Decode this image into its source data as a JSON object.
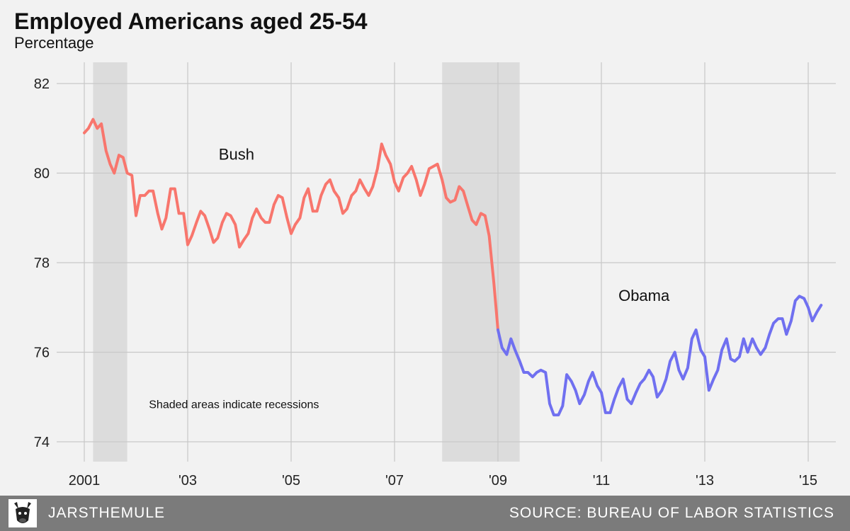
{
  "chart_data": {
    "type": "line",
    "title": "Employed Americans aged 25-54",
    "subtitle": "Percentage",
    "xlim": [
      2001,
      2015.3
    ],
    "ylim": [
      73.6,
      82.5
    ],
    "yticks": [
      74,
      76,
      78,
      80,
      82
    ],
    "xticks": [
      {
        "value": 2001,
        "label": "2001"
      },
      {
        "value": 2003,
        "label": "'03"
      },
      {
        "value": 2005,
        "label": "'05"
      },
      {
        "value": 2007,
        "label": "'07"
      },
      {
        "value": 2009,
        "label": "'09"
      },
      {
        "value": 2011,
        "label": "'11"
      },
      {
        "value": 2013,
        "label": "'13"
      },
      {
        "value": 2015,
        "label": "'15"
      }
    ],
    "grid": true,
    "recessions": [
      {
        "start": 2001.17,
        "end": 2001.83
      },
      {
        "start": 2007.92,
        "end": 2009.42
      }
    ],
    "series": [
      {
        "name": "Bush",
        "color": "#f8766d",
        "label_position": {
          "x": 2003.6,
          "y": 80.3
        },
        "points": [
          [
            2001.0,
            80.9
          ],
          [
            2001.08,
            81.0
          ],
          [
            2001.17,
            81.2
          ],
          [
            2001.25,
            81.0
          ],
          [
            2001.33,
            81.1
          ],
          [
            2001.42,
            80.5
          ],
          [
            2001.5,
            80.2
          ],
          [
            2001.58,
            80.0
          ],
          [
            2001.67,
            80.4
          ],
          [
            2001.75,
            80.35
          ],
          [
            2001.83,
            80.0
          ],
          [
            2001.92,
            79.95
          ],
          [
            2002.0,
            79.05
          ],
          [
            2002.08,
            79.5
          ],
          [
            2002.17,
            79.5
          ],
          [
            2002.25,
            79.6
          ],
          [
            2002.33,
            79.6
          ],
          [
            2002.42,
            79.1
          ],
          [
            2002.5,
            78.75
          ],
          [
            2002.58,
            79.0
          ],
          [
            2002.67,
            79.65
          ],
          [
            2002.75,
            79.65
          ],
          [
            2002.83,
            79.1
          ],
          [
            2002.92,
            79.1
          ],
          [
            2003.0,
            78.4
          ],
          [
            2003.08,
            78.6
          ],
          [
            2003.17,
            78.9
          ],
          [
            2003.25,
            79.15
          ],
          [
            2003.33,
            79.05
          ],
          [
            2003.42,
            78.75
          ],
          [
            2003.5,
            78.45
          ],
          [
            2003.58,
            78.55
          ],
          [
            2003.67,
            78.9
          ],
          [
            2003.75,
            79.1
          ],
          [
            2003.83,
            79.05
          ],
          [
            2003.92,
            78.85
          ],
          [
            2004.0,
            78.35
          ],
          [
            2004.08,
            78.5
          ],
          [
            2004.17,
            78.65
          ],
          [
            2004.25,
            79.0
          ],
          [
            2004.33,
            79.2
          ],
          [
            2004.42,
            79.0
          ],
          [
            2004.5,
            78.9
          ],
          [
            2004.58,
            78.9
          ],
          [
            2004.67,
            79.3
          ],
          [
            2004.75,
            79.5
          ],
          [
            2004.83,
            79.45
          ],
          [
            2004.92,
            79.0
          ],
          [
            2005.0,
            78.65
          ],
          [
            2005.08,
            78.85
          ],
          [
            2005.17,
            79.0
          ],
          [
            2005.25,
            79.45
          ],
          [
            2005.33,
            79.65
          ],
          [
            2005.42,
            79.15
          ],
          [
            2005.5,
            79.15
          ],
          [
            2005.58,
            79.5
          ],
          [
            2005.67,
            79.75
          ],
          [
            2005.75,
            79.85
          ],
          [
            2005.83,
            79.6
          ],
          [
            2005.92,
            79.45
          ],
          [
            2006.0,
            79.1
          ],
          [
            2006.08,
            79.2
          ],
          [
            2006.17,
            79.5
          ],
          [
            2006.25,
            79.6
          ],
          [
            2006.33,
            79.85
          ],
          [
            2006.42,
            79.65
          ],
          [
            2006.5,
            79.5
          ],
          [
            2006.58,
            79.7
          ],
          [
            2006.67,
            80.1
          ],
          [
            2006.75,
            80.65
          ],
          [
            2006.83,
            80.4
          ],
          [
            2006.92,
            80.2
          ],
          [
            2007.0,
            79.8
          ],
          [
            2007.08,
            79.6
          ],
          [
            2007.17,
            79.9
          ],
          [
            2007.25,
            80.0
          ],
          [
            2007.33,
            80.15
          ],
          [
            2007.42,
            79.85
          ],
          [
            2007.5,
            79.5
          ],
          [
            2007.58,
            79.75
          ],
          [
            2007.67,
            80.1
          ],
          [
            2007.75,
            80.15
          ],
          [
            2007.83,
            80.2
          ],
          [
            2007.92,
            79.85
          ],
          [
            2008.0,
            79.45
          ],
          [
            2008.08,
            79.35
          ],
          [
            2008.17,
            79.4
          ],
          [
            2008.25,
            79.7
          ],
          [
            2008.33,
            79.6
          ],
          [
            2008.42,
            79.25
          ],
          [
            2008.5,
            78.95
          ],
          [
            2008.58,
            78.85
          ],
          [
            2008.67,
            79.1
          ],
          [
            2008.75,
            79.05
          ],
          [
            2008.83,
            78.6
          ],
          [
            2008.92,
            77.55
          ],
          [
            2009.0,
            76.5
          ]
        ]
      },
      {
        "name": "Obama",
        "color": "#7070f0",
        "label_position": {
          "x": 2011.33,
          "y": 77.15
        },
        "points": [
          [
            2009.0,
            76.5
          ],
          [
            2009.08,
            76.1
          ],
          [
            2009.17,
            75.95
          ],
          [
            2009.25,
            76.3
          ],
          [
            2009.33,
            76.05
          ],
          [
            2009.42,
            75.8
          ],
          [
            2009.5,
            75.55
          ],
          [
            2009.58,
            75.55
          ],
          [
            2009.67,
            75.45
          ],
          [
            2009.75,
            75.55
          ],
          [
            2009.83,
            75.6
          ],
          [
            2009.92,
            75.55
          ],
          [
            2010.0,
            74.85
          ],
          [
            2010.08,
            74.6
          ],
          [
            2010.17,
            74.6
          ],
          [
            2010.25,
            74.8
          ],
          [
            2010.33,
            75.5
          ],
          [
            2010.42,
            75.35
          ],
          [
            2010.5,
            75.15
          ],
          [
            2010.58,
            74.85
          ],
          [
            2010.67,
            75.05
          ],
          [
            2010.75,
            75.35
          ],
          [
            2010.83,
            75.55
          ],
          [
            2010.92,
            75.25
          ],
          [
            2011.0,
            75.1
          ],
          [
            2011.08,
            74.65
          ],
          [
            2011.17,
            74.65
          ],
          [
            2011.25,
            74.95
          ],
          [
            2011.33,
            75.2
          ],
          [
            2011.42,
            75.4
          ],
          [
            2011.5,
            74.95
          ],
          [
            2011.58,
            74.85
          ],
          [
            2011.67,
            75.1
          ],
          [
            2011.75,
            75.3
          ],
          [
            2011.83,
            75.4
          ],
          [
            2011.92,
            75.6
          ],
          [
            2012.0,
            75.45
          ],
          [
            2012.08,
            75.0
          ],
          [
            2012.17,
            75.15
          ],
          [
            2012.25,
            75.4
          ],
          [
            2012.33,
            75.8
          ],
          [
            2012.42,
            76.0
          ],
          [
            2012.5,
            75.6
          ],
          [
            2012.58,
            75.4
          ],
          [
            2012.67,
            75.65
          ],
          [
            2012.75,
            76.3
          ],
          [
            2012.83,
            76.5
          ],
          [
            2012.92,
            76.05
          ],
          [
            2013.0,
            75.9
          ],
          [
            2013.08,
            75.15
          ],
          [
            2013.17,
            75.4
          ],
          [
            2013.25,
            75.6
          ],
          [
            2013.33,
            76.05
          ],
          [
            2013.42,
            76.3
          ],
          [
            2013.5,
            75.85
          ],
          [
            2013.58,
            75.8
          ],
          [
            2013.67,
            75.9
          ],
          [
            2013.75,
            76.3
          ],
          [
            2013.83,
            76.0
          ],
          [
            2013.92,
            76.3
          ],
          [
            2014.0,
            76.1
          ],
          [
            2014.08,
            75.95
          ],
          [
            2014.17,
            76.1
          ],
          [
            2014.25,
            76.4
          ],
          [
            2014.33,
            76.65
          ],
          [
            2014.42,
            76.75
          ],
          [
            2014.5,
            76.75
          ],
          [
            2014.58,
            76.4
          ],
          [
            2014.67,
            76.7
          ],
          [
            2014.75,
            77.15
          ],
          [
            2014.83,
            77.25
          ],
          [
            2014.92,
            77.2
          ],
          [
            2015.0,
            77.0
          ],
          [
            2015.08,
            76.7
          ],
          [
            2015.17,
            76.9
          ],
          [
            2015.25,
            77.05
          ]
        ]
      }
    ],
    "annotations": [
      {
        "text": "Shaded areas indicate recessions",
        "x": 2002.25,
        "y": 74.75
      }
    ]
  },
  "footer": {
    "brand": "JARSTHEMULE",
    "source": "SOURCE: BUREAU OF LABOR STATISTICS",
    "logo_icon": "mule-head-icon"
  },
  "colors": {
    "background": "#f2f2f2",
    "recession_shade": "#dcdcdc",
    "grid": "#c8c8c8",
    "footer": "#7b7b7b"
  }
}
